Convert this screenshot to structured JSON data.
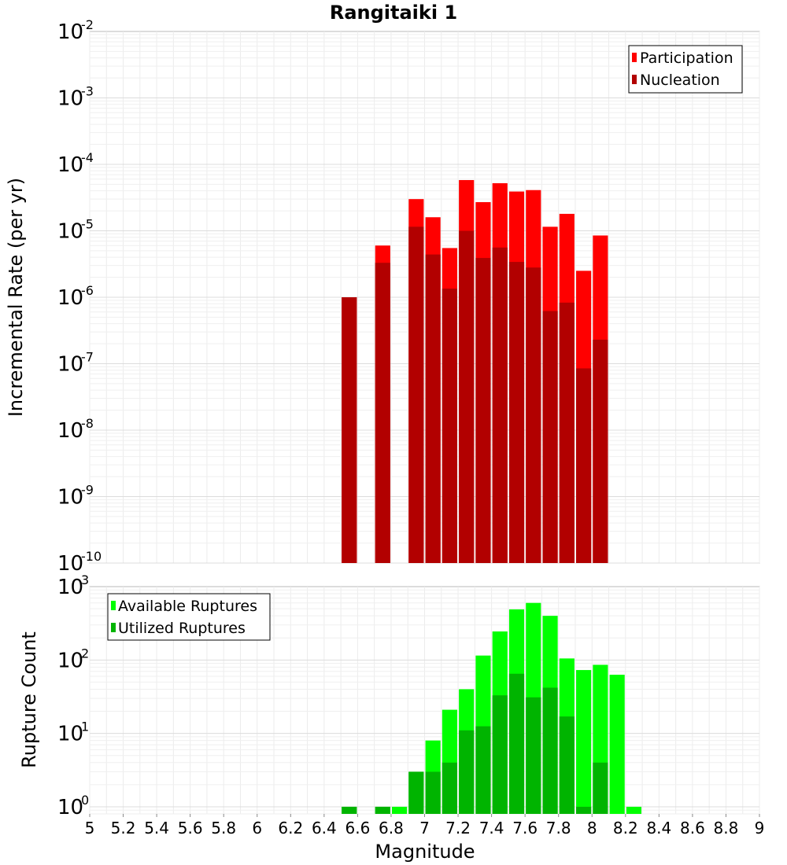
{
  "chart_data": [
    {
      "type": "bar",
      "title": "Rangitaiki 1",
      "xlabel": "",
      "ylabel": "Incremental Rate (per yr)",
      "y_scale": "log",
      "xlim": [
        5,
        9
      ],
      "ylim": [
        1e-10,
        0.01
      ],
      "y_ticks": [
        {
          "base": "10",
          "exp": "-10"
        },
        {
          "base": "10",
          "exp": "-9"
        },
        {
          "base": "10",
          "exp": "-8"
        },
        {
          "base": "10",
          "exp": "-7"
        },
        {
          "base": "10",
          "exp": "-6"
        },
        {
          "base": "10",
          "exp": "-5"
        },
        {
          "base": "10",
          "exp": "-4"
        },
        {
          "base": "10",
          "exp": "-3"
        },
        {
          "base": "10",
          "exp": "-2"
        }
      ],
      "grid": true,
      "legend_position": "top-right",
      "x": [
        6.55,
        6.75,
        6.95,
        7.05,
        7.15,
        7.25,
        7.35,
        7.45,
        7.55,
        7.65,
        7.75,
        7.85,
        7.95,
        8.05
      ],
      "series": [
        {
          "name": "Participation",
          "color": "#ff0000",
          "values": [
            1e-06,
            6e-06,
            3e-05,
            1.6e-05,
            5.5e-06,
            5.8e-05,
            2.7e-05,
            5.2e-05,
            3.9e-05,
            4.1e-05,
            1.15e-05,
            1.8e-05,
            2.5e-06,
            8.5e-06
          ]
        },
        {
          "name": "Nucleation",
          "color": "#b20000",
          "values": [
            1e-06,
            3.3e-06,
            1.15e-05,
            4.4e-06,
            1.35e-06,
            1e-05,
            3.9e-06,
            5.6e-06,
            3.4e-06,
            2.8e-06,
            6.2e-07,
            8.3e-07,
            8.5e-08,
            2.3e-07
          ]
        }
      ]
    },
    {
      "type": "bar",
      "title": "",
      "xlabel": "Magnitude",
      "ylabel": "Rupture Count",
      "y_scale": "log",
      "xlim": [
        5,
        9
      ],
      "ylim": [
        0.8,
        1000
      ],
      "x_ticks": [
        "5",
        "5.2",
        "5.4",
        "5.6",
        "5.8",
        "6",
        "6.2",
        "6.4",
        "6.6",
        "6.8",
        "7",
        "7.2",
        "7.4",
        "7.6",
        "7.8",
        "8",
        "8.2",
        "8.4",
        "8.6",
        "8.8",
        "9"
      ],
      "y_ticks": [
        {
          "base": "10",
          "exp": "0"
        },
        {
          "base": "10",
          "exp": "1"
        },
        {
          "base": "10",
          "exp": "2"
        },
        {
          "base": "10",
          "exp": "3"
        }
      ],
      "grid": true,
      "legend_position": "top-left",
      "x": [
        6.55,
        6.75,
        6.85,
        6.95,
        7.05,
        7.15,
        7.25,
        7.35,
        7.45,
        7.55,
        7.65,
        7.75,
        7.85,
        7.95,
        8.05,
        8.15,
        8.25
      ],
      "series": [
        {
          "name": "Available Ruptures",
          "color": "#00ff00",
          "values": [
            1,
            1,
            1,
            3,
            8,
            21,
            40,
            115,
            245,
            490,
            600,
            400,
            105,
            73,
            86,
            63,
            1
          ]
        },
        {
          "name": "Utilized Ruptures",
          "color": "#00b400",
          "values": [
            1,
            1,
            0,
            3,
            3,
            4,
            11,
            12.5,
            33,
            65,
            31,
            42,
            17,
            1,
            4,
            0,
            0
          ]
        }
      ]
    }
  ]
}
